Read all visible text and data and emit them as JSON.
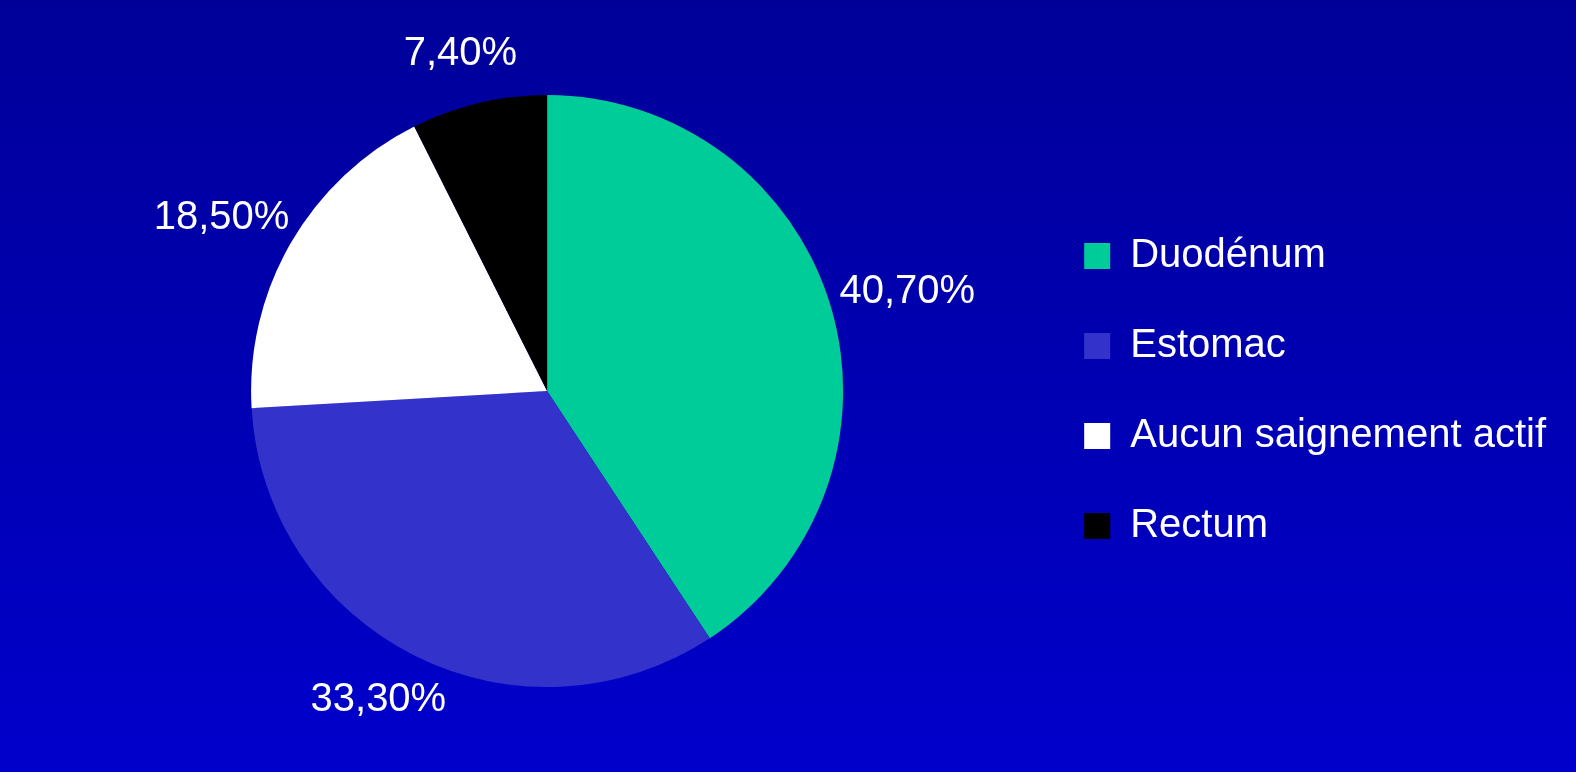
{
  "chart_data": {
    "type": "pie",
    "categories": [
      "Duodénum",
      "Estomac",
      "Aucun saignement actif",
      "Rectum"
    ],
    "values": [
      40.7,
      33.3,
      18.5,
      7.4
    ],
    "colors": [
      "#00cc99",
      "#3333cc",
      "#ffffff",
      "#000000"
    ],
    "value_labels": [
      "40,70%",
      "33,30%",
      "18,50%",
      "7,40%"
    ],
    "legend": "right"
  }
}
